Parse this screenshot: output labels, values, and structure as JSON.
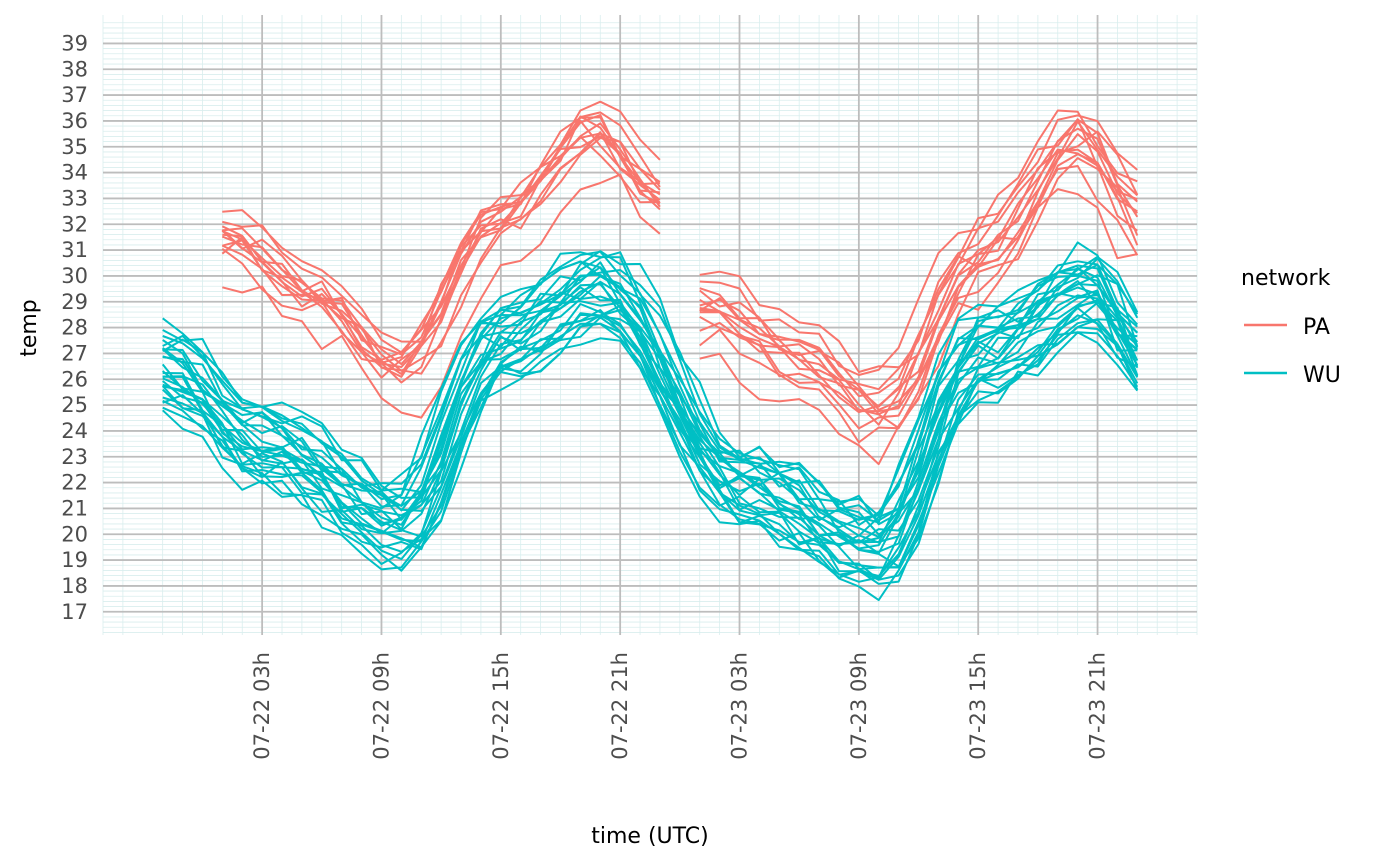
{
  "chart_data": {
    "type": "line",
    "xlabel": "time (UTC)",
    "ylabel": "temp",
    "x_tick_labels": [
      "07-22 03h",
      "07-22 09h",
      "07-22 15h",
      "07-22 21h",
      "07-23 03h",
      "07-23 09h",
      "07-23 15h",
      "07-23 21h"
    ],
    "x_tick_hours": [
      3,
      9,
      15,
      21,
      27,
      33,
      39,
      45
    ],
    "x_unit": "hours since 07-22 00h",
    "xlim": [
      -5,
      50
    ],
    "y_ticks": [
      17,
      18,
      19,
      20,
      21,
      22,
      23,
      24,
      25,
      26,
      27,
      28,
      29,
      30,
      31,
      32,
      33,
      34,
      35,
      36,
      37,
      38,
      39
    ],
    "ylim": [
      16.1,
      40.1
    ],
    "grid": true,
    "legend": {
      "title": "network",
      "position": "right",
      "entries": [
        {
          "label": "PA",
          "color": "#F8766D"
        },
        {
          "label": "WU",
          "color": "#00BFC4"
        }
      ]
    },
    "series": [
      {
        "network": "PA",
        "color": "#F8766D",
        "members": 14,
        "day1_hours": [
          1,
          23
        ],
        "day2_hours": [
          25,
          47
        ]
      },
      {
        "network": "WU",
        "color": "#00BFC4",
        "members": 27,
        "hours": [
          -2,
          47
        ]
      }
    ],
    "profiles": {
      "PA": {
        "hours": [
          1,
          6,
          10,
          15,
          20,
          23
        ],
        "day1_values": [
          31,
          28.5,
          25.8,
          31.5,
          35,
          32.5
        ],
        "day2_values": [
          28.5,
          26.5,
          24.5,
          30.5,
          35,
          32
        ]
      },
      "WU": {
        "hours": [
          -2,
          3,
          10,
          15,
          20,
          27,
          34,
          39,
          45,
          47
        ],
        "values": [
          26.5,
          23.5,
          20.5,
          27.5,
          29.5,
          22,
          19.5,
          27,
          29.5,
          27
        ]
      }
    }
  }
}
